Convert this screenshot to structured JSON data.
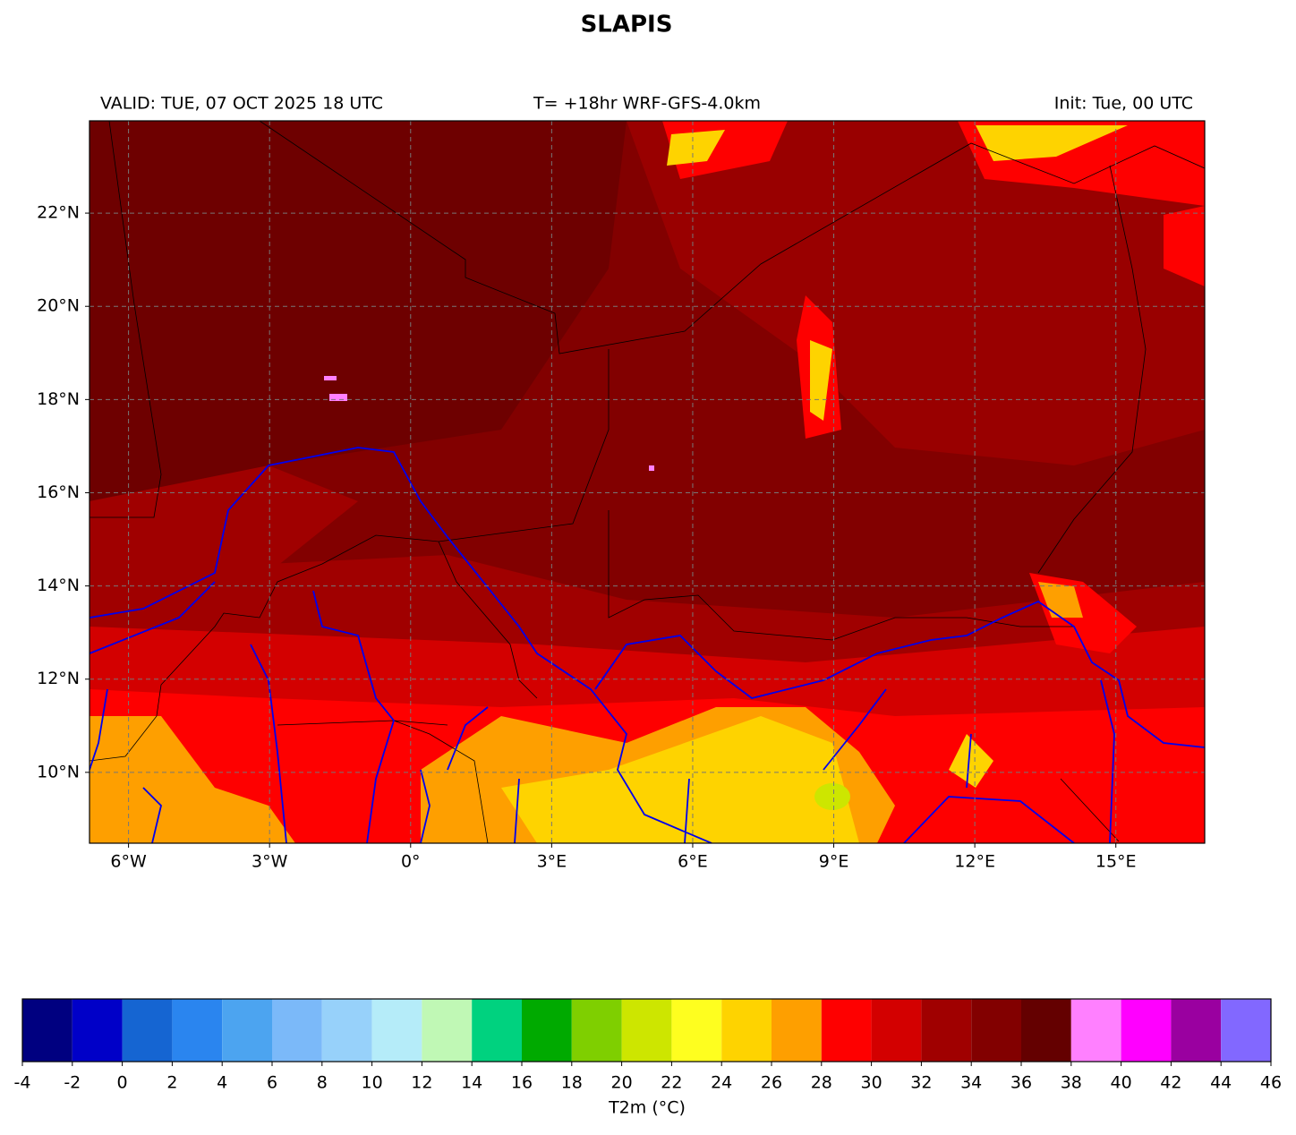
{
  "title": "SLAPIS",
  "header": {
    "valid": "VALID: TUE, 07 OCT 2025 18 UTC",
    "model": "T= +18hr WRF-GFS-4.0km",
    "init": "Init: Tue, 00 UTC"
  },
  "map": {
    "xlim": [
      -6.83,
      16.89
    ],
    "ylim": [
      8.48,
      23.98
    ],
    "grid": true,
    "xticks": [
      {
        "value": -6,
        "label": "6°W"
      },
      {
        "value": -3,
        "label": "3°W"
      },
      {
        "value": 0,
        "label": "0°"
      },
      {
        "value": 3,
        "label": "3°E"
      },
      {
        "value": 6,
        "label": "6°E"
      },
      {
        "value": 9,
        "label": "9°E"
      },
      {
        "value": 12,
        "label": "12°E"
      },
      {
        "value": 15,
        "label": "15°E"
      }
    ],
    "yticks": [
      {
        "value": 10,
        "label": "10°N"
      },
      {
        "value": 12,
        "label": "12°N"
      },
      {
        "value": 14,
        "label": "14°N"
      },
      {
        "value": 16,
        "label": "16°N"
      },
      {
        "value": 18,
        "label": "18°N"
      },
      {
        "value": 20,
        "label": "20°N"
      },
      {
        "value": 22,
        "label": "22°N"
      }
    ]
  },
  "colorbar": {
    "label": "T2m (°C)",
    "bins": [
      -4,
      -2,
      0,
      2,
      4,
      6,
      8,
      10,
      12,
      14,
      16,
      18,
      20,
      22,
      24,
      26,
      28,
      30,
      32,
      34,
      36,
      38,
      40,
      42,
      44,
      46
    ],
    "colors": [
      "#000080",
      "#0000c8",
      "#1565d2",
      "#2a85ef",
      "#4ca4f0",
      "#7bb9f9",
      "#97d1fa",
      "#b5ecf9",
      "#c0f8b5",
      "#00d27f",
      "#00aa00",
      "#7fcf00",
      "#cde600",
      "#fefe1f",
      "#fed300",
      "#fe9f00",
      "#fe0000",
      "#d30000",
      "#a00000",
      "#820000",
      "#640000",
      "#ff80ff",
      "#ff00ff",
      "#9a00a0",
      "#8268ff"
    ]
  }
}
